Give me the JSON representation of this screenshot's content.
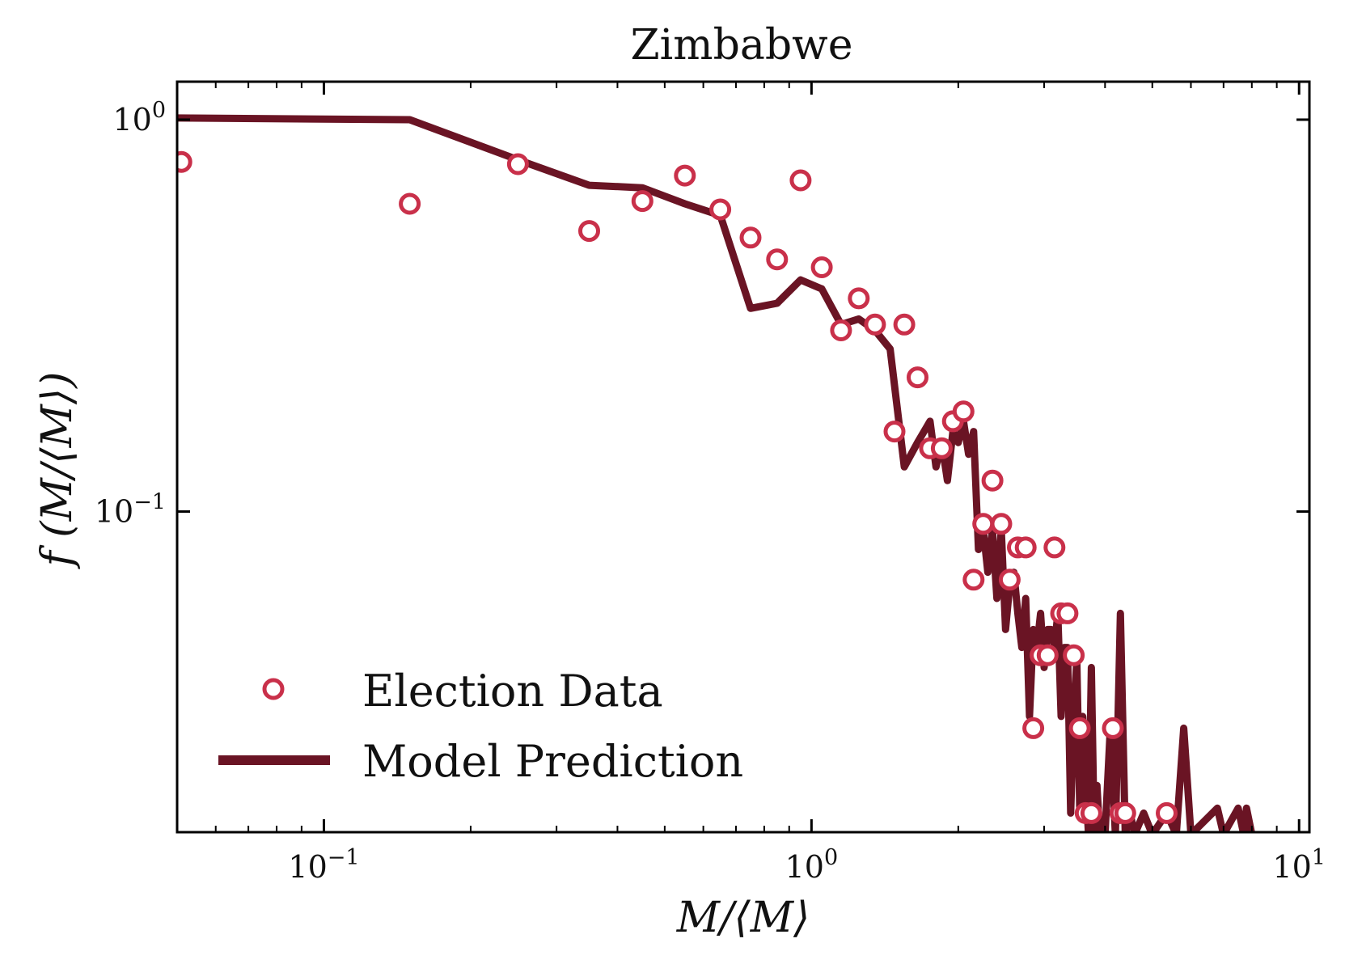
{
  "chart_data": {
    "type": "line",
    "title": "Zimbabwe",
    "xlabel": "M/⟨M⟩",
    "ylabel": "f (M/⟨M⟩)",
    "xscale": "log",
    "yscale": "log",
    "xlim": [
      0.05,
      10.5
    ],
    "ylim": [
      0.0152,
      1.25
    ],
    "x_ticks": [
      {
        "value": 0.1,
        "base": "10",
        "exp": "−1"
      },
      {
        "value": 1,
        "base": "10",
        "exp": "0"
      },
      {
        "value": 10,
        "base": "10",
        "exp": "1"
      }
    ],
    "y_ticks": [
      {
        "value": 0.1,
        "base": "10",
        "exp": "−1"
      },
      {
        "value": 1,
        "base": "10",
        "exp": "0"
      }
    ],
    "grid": false,
    "legend_position": "bottom-left",
    "colors": {
      "data": "#c9304a",
      "model": "#6a1424",
      "axes": "#000000"
    },
    "series": [
      {
        "name": "Election Data",
        "kind": "scatter",
        "points": [
          [
            0.051,
            0.78
          ],
          [
            0.15,
            0.61
          ],
          [
            0.25,
            0.77
          ],
          [
            0.35,
            0.52
          ],
          [
            0.45,
            0.62
          ],
          [
            0.55,
            0.72
          ],
          [
            0.65,
            0.59
          ],
          [
            0.75,
            0.5
          ],
          [
            0.85,
            0.44
          ],
          [
            0.95,
            0.7
          ],
          [
            1.05,
            0.42
          ],
          [
            1.15,
            0.29
          ],
          [
            1.25,
            0.35
          ],
          [
            1.35,
            0.3
          ],
          [
            1.55,
            0.3
          ],
          [
            1.48,
            0.16
          ],
          [
            1.65,
            0.22
          ],
          [
            1.75,
            0.145
          ],
          [
            1.85,
            0.145
          ],
          [
            1.95,
            0.17
          ],
          [
            2.05,
            0.18
          ],
          [
            2.15,
            0.067
          ],
          [
            2.25,
            0.093
          ],
          [
            2.35,
            0.12
          ],
          [
            2.45,
            0.093
          ],
          [
            2.55,
            0.067
          ],
          [
            2.65,
            0.081
          ],
          [
            2.75,
            0.081
          ],
          [
            2.85,
            0.028
          ],
          [
            2.95,
            0.043
          ],
          [
            3.05,
            0.043
          ],
          [
            3.15,
            0.081
          ],
          [
            3.25,
            0.055
          ],
          [
            3.35,
            0.055
          ],
          [
            3.45,
            0.043
          ],
          [
            3.55,
            0.028
          ],
          [
            3.65,
            0.017
          ],
          [
            3.75,
            0.017
          ],
          [
            4.15,
            0.028
          ],
          [
            4.3,
            0.017
          ],
          [
            4.4,
            0.017
          ],
          [
            5.35,
            0.017
          ]
        ]
      },
      {
        "name": "Model Prediction",
        "kind": "line",
        "points": [
          [
            0.05,
            1.01
          ],
          [
            0.15,
            1.0
          ],
          [
            0.25,
            0.79
          ],
          [
            0.35,
            0.68
          ],
          [
            0.45,
            0.67
          ],
          [
            0.55,
            0.61
          ],
          [
            0.65,
            0.57
          ],
          [
            0.75,
            0.33
          ],
          [
            0.85,
            0.34
          ],
          [
            0.95,
            0.39
          ],
          [
            1.05,
            0.37
          ],
          [
            1.15,
            0.3
          ],
          [
            1.25,
            0.31
          ],
          [
            1.35,
            0.29
          ],
          [
            1.45,
            0.26
          ],
          [
            1.55,
            0.13
          ],
          [
            1.65,
            0.15
          ],
          [
            1.75,
            0.17
          ],
          [
            1.8,
            0.13
          ],
          [
            1.85,
            0.15
          ],
          [
            1.9,
            0.12
          ],
          [
            1.95,
            0.16
          ],
          [
            2.0,
            0.15
          ],
          [
            2.05,
            0.17
          ],
          [
            2.1,
            0.14
          ],
          [
            2.15,
            0.16
          ],
          [
            2.2,
            0.08
          ],
          [
            2.25,
            0.09
          ],
          [
            2.3,
            0.07
          ],
          [
            2.35,
            0.09
          ],
          [
            2.4,
            0.06
          ],
          [
            2.45,
            0.09
          ],
          [
            2.5,
            0.05
          ],
          [
            2.55,
            0.065
          ],
          [
            2.6,
            0.07
          ],
          [
            2.65,
            0.055
          ],
          [
            2.7,
            0.045
          ],
          [
            2.75,
            0.06
          ],
          [
            2.8,
            0.03
          ],
          [
            2.85,
            0.05
          ],
          [
            2.9,
            0.045
          ],
          [
            2.95,
            0.055
          ],
          [
            3.0,
            0.04
          ],
          [
            3.05,
            0.05
          ],
          [
            3.1,
            0.05
          ],
          [
            3.15,
            0.045
          ],
          [
            3.2,
            0.055
          ],
          [
            3.25,
            0.03
          ],
          [
            3.3,
            0.045
          ],
          [
            3.35,
            0.045
          ],
          [
            3.4,
            0.017
          ],
          [
            3.45,
            0.03
          ],
          [
            3.5,
            0.042
          ],
          [
            3.55,
            0.017
          ],
          [
            3.6,
            0.03
          ],
          [
            3.65,
            0.02
          ],
          [
            3.7,
            0.015
          ],
          [
            3.75,
            0.04
          ],
          [
            3.8,
            0.015
          ],
          [
            3.85,
            0.02
          ],
          [
            3.9,
            0.015
          ],
          [
            4.0,
            0.015
          ],
          [
            4.1,
            0.028
          ],
          [
            4.2,
            0.015
          ],
          [
            4.3,
            0.055
          ],
          [
            4.4,
            0.015
          ],
          [
            4.5,
            0.017
          ],
          [
            4.6,
            0.015
          ],
          [
            4.8,
            0.017
          ],
          [
            5.0,
            0.015
          ],
          [
            5.35,
            0.017
          ],
          [
            5.6,
            0.015
          ],
          [
            5.8,
            0.028
          ],
          [
            6.0,
            0.015
          ],
          [
            6.8,
            0.0175
          ],
          [
            7.0,
            0.015
          ],
          [
            7.5,
            0.0175
          ],
          [
            7.7,
            0.015
          ],
          [
            7.8,
            0.0175
          ],
          [
            8.0,
            0.015
          ]
        ]
      }
    ]
  }
}
